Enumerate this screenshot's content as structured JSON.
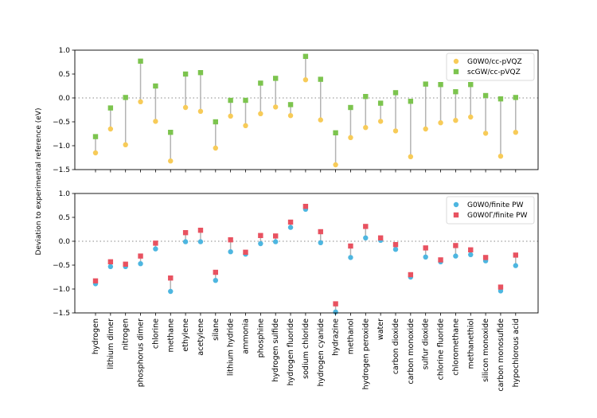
{
  "figure": {
    "ylabel": "Deviation to experimental reference (eV)",
    "categories": [
      "hydrogen",
      "lithium dimer",
      "nitrogen",
      "phosphorus dimer",
      "chlorine",
      "methane",
      "ethylene",
      "acetylene",
      "silane",
      "lithium hydride",
      "ammonia",
      "phosphine",
      "hydrogen sulfide",
      "hydrogen fluoride",
      "sodium chloride",
      "hydrogen cyanide",
      "hydrazine",
      "methanol",
      "hydrogen peroxide",
      "water",
      "carbon dioxide",
      "carbon monoxide",
      "sulfur dioxide",
      "chlorine fluoride",
      "chloromethane",
      "methanethiol",
      "silicon monoxide",
      "carbon monosufide",
      "hypochlorous acid"
    ]
  },
  "chart_data": [
    {
      "type": "scatter",
      "panel": "top",
      "ylim": [
        -1.5,
        1.0
      ],
      "yticks": [
        "1.0",
        "0.5",
        "0.0",
        "−0.5",
        "−1.0",
        "−1.5"
      ],
      "ytick_values": [
        1.0,
        0.5,
        0.0,
        -0.5,
        -1.0,
        -1.5
      ],
      "legend_position": "top-right",
      "reference_line": 0.0,
      "series": [
        {
          "name": "G0W0/cc-pVQZ",
          "legend_main": "G",
          "legend_sub": "0",
          "legend_main2": "W",
          "legend_sub2": "0",
          "legend_rest": "/cc-pVQZ",
          "marker": "circle",
          "color": "#f7cb58",
          "values": [
            -1.15,
            -0.65,
            -0.98,
            -0.08,
            -0.49,
            -1.32,
            -0.2,
            -0.28,
            -1.05,
            -0.38,
            -0.58,
            -0.33,
            -0.19,
            -0.37,
            0.38,
            -0.46,
            -1.4,
            -0.83,
            -0.62,
            -0.49,
            -0.69,
            -1.23,
            -0.65,
            -0.52,
            -0.47,
            -0.4,
            -0.74,
            -1.22,
            -0.72
          ]
        },
        {
          "name": "scGW/cc-pVQZ",
          "legend_main": "sc",
          "legend_italic": "GW",
          "legend_rest": "/cc-pVQZ",
          "marker": "square",
          "color": "#7cc44e",
          "values": [
            -0.81,
            -0.21,
            0.01,
            0.77,
            0.25,
            -0.72,
            0.5,
            0.53,
            -0.5,
            -0.05,
            -0.05,
            0.31,
            0.41,
            -0.14,
            0.87,
            0.39,
            -0.73,
            -0.2,
            0.03,
            -0.11,
            0.11,
            -0.07,
            0.29,
            0.28,
            0.13,
            0.28,
            0.05,
            -0.02,
            0.01
          ]
        }
      ]
    },
    {
      "type": "scatter",
      "panel": "bottom",
      "ylim": [
        -1.5,
        1.0
      ],
      "yticks": [
        "1.0",
        "0.5",
        "0.0",
        "−0.5",
        "−1.0",
        "−1.5"
      ],
      "ytick_values": [
        1.0,
        0.5,
        0.0,
        -0.5,
        -1.0,
        -1.5
      ],
      "legend_position": "top-right",
      "reference_line": 0.0,
      "series": [
        {
          "name": "G0W0/finite PW",
          "marker": "circle",
          "color": "#4db6e0",
          "values": [
            -0.89,
            -0.53,
            -0.53,
            -0.47,
            -0.16,
            -1.05,
            -0.01,
            -0.01,
            -0.82,
            -0.22,
            -0.27,
            -0.05,
            -0.01,
            0.29,
            0.67,
            -0.03,
            -1.48,
            -0.34,
            0.07,
            0.02,
            -0.17,
            -0.75,
            -0.33,
            -0.43,
            -0.31,
            -0.28,
            -0.41,
            -1.04,
            -0.51
          ]
        },
        {
          "name": "G0W0Γ/finite PW",
          "marker": "square",
          "color": "#e85260",
          "values": [
            -0.83,
            -0.43,
            -0.48,
            -0.31,
            -0.04,
            -0.77,
            0.18,
            0.23,
            -0.65,
            0.03,
            -0.23,
            0.12,
            0.11,
            0.4,
            0.73,
            0.2,
            -1.31,
            -0.1,
            0.31,
            0.07,
            -0.07,
            -0.7,
            -0.14,
            -0.39,
            -0.09,
            -0.18,
            -0.34,
            -0.96,
            -0.29
          ]
        }
      ]
    }
  ]
}
